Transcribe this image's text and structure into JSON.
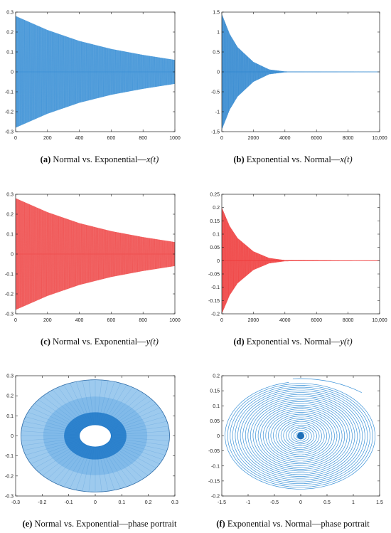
{
  "chart_data": [
    {
      "id": "a",
      "type": "line",
      "caption": {
        "label": "(a)",
        "text": "Normal vs. Exponential—",
        "math": "x(t)"
      },
      "color": "#3a8fd6",
      "xlim": [
        0,
        1000
      ],
      "ylim": [
        -0.3,
        0.3
      ],
      "xticks": [
        "0",
        "200",
        "400",
        "600",
        "800",
        "1000"
      ],
      "yticks": [
        "0.3",
        "0.2",
        "0.1",
        "0",
        "-0.1",
        "-0.2",
        "-0.3"
      ],
      "envelope": {
        "x": [
          0,
          200,
          400,
          600,
          800,
          1000
        ],
        "amplitude": [
          0.28,
          0.21,
          0.155,
          0.115,
          0.085,
          0.06
        ]
      }
    },
    {
      "id": "b",
      "type": "line",
      "caption": {
        "label": "(b)",
        "text": "Exponential vs. Normal—",
        "math": "x(t)"
      },
      "color": "#2f86cf",
      "xlim": [
        0,
        10000
      ],
      "ylim": [
        -1.5,
        1.5
      ],
      "xticks": [
        "0",
        "2000",
        "4000",
        "6000",
        "8000",
        "10,000"
      ],
      "yticks": [
        "1.5",
        "1",
        "0.5",
        "0",
        "-0.5",
        "-1",
        "-1.5"
      ],
      "envelope": {
        "x": [
          0,
          500,
          1000,
          2000,
          3000,
          4000,
          10000
        ],
        "amplitude": [
          1.45,
          0.95,
          0.62,
          0.25,
          0.06,
          0.01,
          0.0
        ]
      }
    },
    {
      "id": "c",
      "type": "line",
      "caption": {
        "label": "(c)",
        "text": "Normal vs. Exponential—",
        "math": "y(t)"
      },
      "color": "#ef4a4a",
      "xlim": [
        0,
        1000
      ],
      "ylim": [
        -0.3,
        0.3
      ],
      "xticks": [
        "0",
        "200",
        "400",
        "600",
        "800",
        "1000"
      ],
      "yticks": [
        "0.3",
        "0.2",
        "0.1",
        "0",
        "-0.1",
        "-0.2",
        "-0.3"
      ],
      "envelope": {
        "x": [
          0,
          200,
          400,
          600,
          800,
          1000
        ],
        "amplitude": [
          0.28,
          0.21,
          0.155,
          0.115,
          0.085,
          0.06
        ]
      }
    },
    {
      "id": "d",
      "type": "line",
      "caption": {
        "label": "(d)",
        "text": "Exponential vs. Normal—",
        "math": "y(t)"
      },
      "color": "#ef3b3b",
      "xlim": [
        0,
        10000
      ],
      "ylim": [
        -0.2,
        0.25
      ],
      "xticks": [
        "0",
        "2000",
        "4000",
        "6000",
        "8000",
        "10,000"
      ],
      "yticks": [
        "0.25",
        "0.2",
        "0.15",
        "0.1",
        "0.05",
        "0",
        "-0.05",
        "-0.1",
        "-0.15",
        "-0.2"
      ],
      "envelope": {
        "x": [
          0,
          500,
          1000,
          2000,
          3000,
          4000,
          10000
        ],
        "amplitude": [
          0.2,
          0.13,
          0.085,
          0.035,
          0.01,
          0.002,
          0.0
        ]
      }
    },
    {
      "id": "e",
      "type": "scatter",
      "caption": {
        "label": "(e)",
        "text": "Normal vs. Exponential—phase portrait",
        "math": ""
      },
      "color": "#4d9ee0",
      "dense_color": "#1f78c8",
      "xlim": [
        -0.3,
        0.3
      ],
      "ylim": [
        -0.3,
        0.3
      ],
      "xticks": [
        "-0.3",
        "-0.2",
        "-0.1",
        "0",
        "0.1",
        "0.2",
        "0.3"
      ],
      "yticks": [
        "0.3",
        "0.2",
        "0.1",
        "0",
        "-0.1",
        "-0.2",
        "-0.3"
      ],
      "ring": {
        "outer_rx": 0.28,
        "outer_ry": 0.28,
        "inner_rx": 0.06,
        "inner_ry": 0.055
      }
    },
    {
      "id": "f",
      "type": "scatter",
      "caption": {
        "label": "(f)",
        "text": "Exponential vs. Normal—phase portrait",
        "math": ""
      },
      "color": "#3b92d8",
      "xlim": [
        -1.5,
        1.5
      ],
      "ylim": [
        -0.2,
        0.2
      ],
      "xticks": [
        "-1.5",
        "-1",
        "-0.5",
        "0",
        "0.5",
        "1",
        "1.5"
      ],
      "yticks": [
        "0.2",
        "0.15",
        "0.1",
        "0.05",
        "0",
        "-0.05",
        "-0.1",
        "-0.15",
        "-0.2"
      ],
      "spiral": {
        "start_x": -0.15,
        "start_y": 0.19,
        "max_x": 1.45,
        "turns": 30
      }
    }
  ]
}
